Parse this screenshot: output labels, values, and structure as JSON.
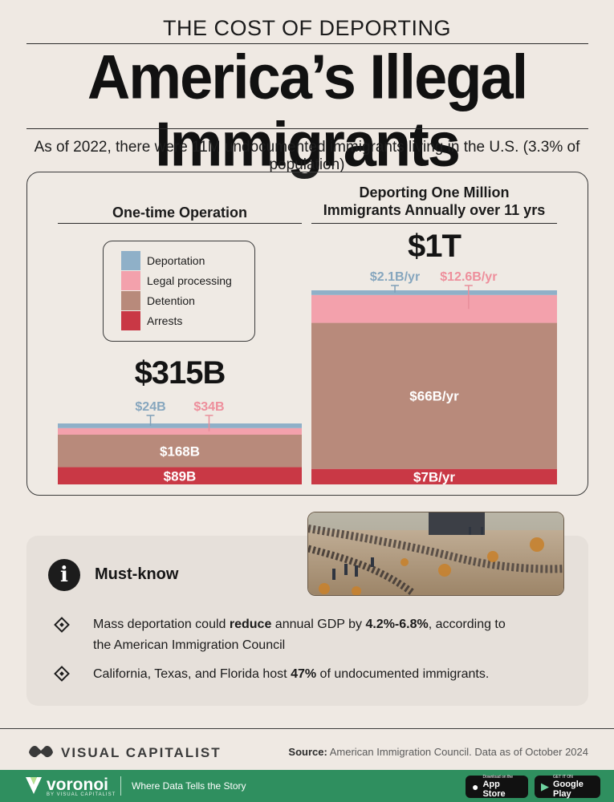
{
  "header": {
    "kicker": "THE COST OF DEPORTING",
    "title": "America’s Illegal Immigrants",
    "subtitle": "As of 2022, there were 11M undocumented immigrants living in the U.S. (3.3% of population)"
  },
  "colors": {
    "deportation": "#8fb0c8",
    "legal_processing": "#f3a1ac",
    "detention": "#b88a7b",
    "arrests": "#c93845",
    "footer_green": "#2f8f5f"
  },
  "legend": [
    {
      "label": "Deportation",
      "color_key": "deportation"
    },
    {
      "label": "Legal processing",
      "color_key": "legal_processing"
    },
    {
      "label": "Detention",
      "color_key": "detention"
    },
    {
      "label": "Arrests",
      "color_key": "arrests"
    }
  ],
  "chart_data": [
    {
      "type": "bar",
      "title": "One-time Operation",
      "total_label": "$315B",
      "total": 315,
      "unit": "B",
      "stack": [
        {
          "name": "Arrests",
          "value": 89,
          "label": "$89B"
        },
        {
          "name": "Detention",
          "value": 168,
          "label": "$168B"
        },
        {
          "name": "Legal processing",
          "value": 34,
          "label": "$34B"
        },
        {
          "name": "Deportation",
          "value": 24,
          "label": "$24B"
        }
      ]
    },
    {
      "type": "bar",
      "title": "Deporting One Million Immigrants Annually over 11 yrs",
      "title_lines": [
        "Deporting One Million",
        "Immigrants Annually over 11 yrs"
      ],
      "total_label": "$1T",
      "unit": "B/yr",
      "stack": [
        {
          "name": "Arrests",
          "value": 7,
          "label": "$7B/yr"
        },
        {
          "name": "Detention",
          "value": 66,
          "label": "$66B/yr"
        },
        {
          "name": "Legal processing",
          "value": 12.6,
          "label": "$12.6B/yr"
        },
        {
          "name": "Deportation",
          "value": 2.1,
          "label": "$2.1B/yr"
        }
      ]
    }
  ],
  "must_know": {
    "icon": "info-icon",
    "title": "Must-know",
    "bullets": [
      {
        "parts": [
          {
            "t": "Mass deportation could ",
            "b": false
          },
          {
            "t": "reduce",
            "b": true
          },
          {
            "t": " annual GDP by ",
            "b": false
          },
          {
            "t": "4.2%-6.8%",
            "b": true
          },
          {
            "t": ", according to the American Immigration Council",
            "b": false
          }
        ]
      },
      {
        "parts": [
          {
            "t": "California, Texas, and Florida host ",
            "b": false
          },
          {
            "t": "47%",
            "b": true
          },
          {
            "t": " of undocumented immigrants.",
            "b": false
          }
        ]
      }
    ]
  },
  "footer": {
    "brand": "VISUAL CAPITALIST",
    "source_label": "Source:",
    "source_text": "American Immigration Council. Data as of October 2024",
    "voronoi": "voronoi",
    "voronoi_sub": "BY VISUAL CAPITALIST",
    "tagline": "Where Data Tells the Story",
    "app_store_small": "Download on the",
    "app_store": "App Store",
    "google_play_small": "GET IT ON",
    "google_play": "Google Play"
  }
}
